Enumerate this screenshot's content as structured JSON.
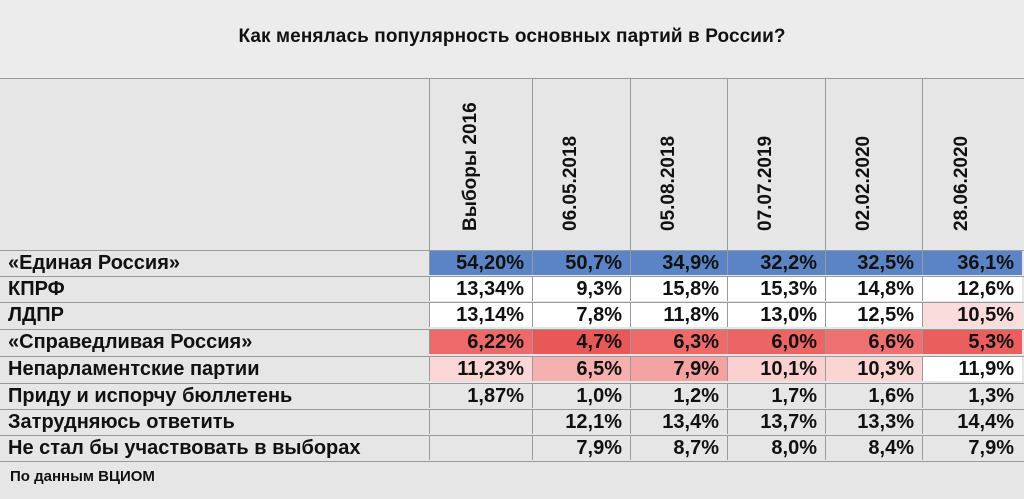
{
  "title": "Как менялась популярность основных партий в России?",
  "columns": [
    "Выборы 2016",
    "06.05.2018",
    "05.08.2018",
    "07.07.2019",
    "02.02.2020",
    "28.06.2020"
  ],
  "rows": [
    {
      "label": "«Единая Россия»",
      "values": [
        "54,20%",
        "50,7%",
        "34,9%",
        "32,2%",
        "32,5%",
        "36,1%"
      ],
      "colors": [
        "#5b84c6",
        "#5b84c6",
        "#5b84c6",
        "#5b84c6",
        "#5b84c6",
        "#5b84c6"
      ]
    },
    {
      "label": "КПРФ",
      "values": [
        "13,34%",
        "9,3%",
        "15,8%",
        "15,3%",
        "14,8%",
        "12,6%"
      ],
      "colors": [
        "#ffffff",
        "#ffffff",
        "#ffffff",
        "#ffffff",
        "#ffffff",
        "#ffffff"
      ]
    },
    {
      "label": "ЛДПР",
      "values": [
        "13,14%",
        "7,8%",
        "11,8%",
        "13,0%",
        "12,5%",
        "10,5%"
      ],
      "colors": [
        "#ffffff",
        "#ffffff",
        "#ffffff",
        "#ffffff",
        "#ffffff",
        "#fbdcdc"
      ]
    },
    {
      "label": "«Справедливая Россия»",
      "values": [
        "6,22%",
        "4,7%",
        "6,3%",
        "6,0%",
        "6,6%",
        "5,3%"
      ],
      "colors": [
        "#ee6a6a",
        "#e85858",
        "#ee6a6a",
        "#ec6464",
        "#ef7070",
        "#ea5e5e"
      ]
    },
    {
      "label": "Непарламентские партии",
      "values": [
        "11,23%",
        "6,5%",
        "7,9%",
        "10,1%",
        "10,3%",
        "11,9%"
      ],
      "colors": [
        "#fbd6d6",
        "#f6b0b0",
        "#f4a2a2",
        "#fbd0d0",
        "#fbd4d4",
        "#ffffff"
      ]
    },
    {
      "label": "Приду и испорчу бюллетень",
      "values": [
        "1,87%",
        "1,0%",
        "1,2%",
        "1,7%",
        "1,6%",
        "1,3%"
      ],
      "colors": [
        "#e6e6e6",
        "#e6e6e6",
        "#e6e6e6",
        "#e6e6e6",
        "#e6e6e6",
        "#e6e6e6"
      ]
    },
    {
      "label": "Затрудняюсь ответить",
      "values": [
        "",
        "12,1%",
        "13,4%",
        "13,7%",
        "13,3%",
        "14,4%"
      ],
      "colors": [
        "#e6e6e6",
        "#e6e6e6",
        "#e6e6e6",
        "#e6e6e6",
        "#e6e6e6",
        "#e6e6e6"
      ]
    },
    {
      "label": "Не стал бы участвовать в выборах",
      "values": [
        "",
        "7,9%",
        "8,7%",
        "8,0%",
        "8,4%",
        "7,9%"
      ],
      "colors": [
        "#e6e6e6",
        "#e6e6e6",
        "#e6e6e6",
        "#e6e6e6",
        "#e6e6e6",
        "#e6e6e6"
      ]
    }
  ],
  "source": "По данным ВЦИОМ"
}
